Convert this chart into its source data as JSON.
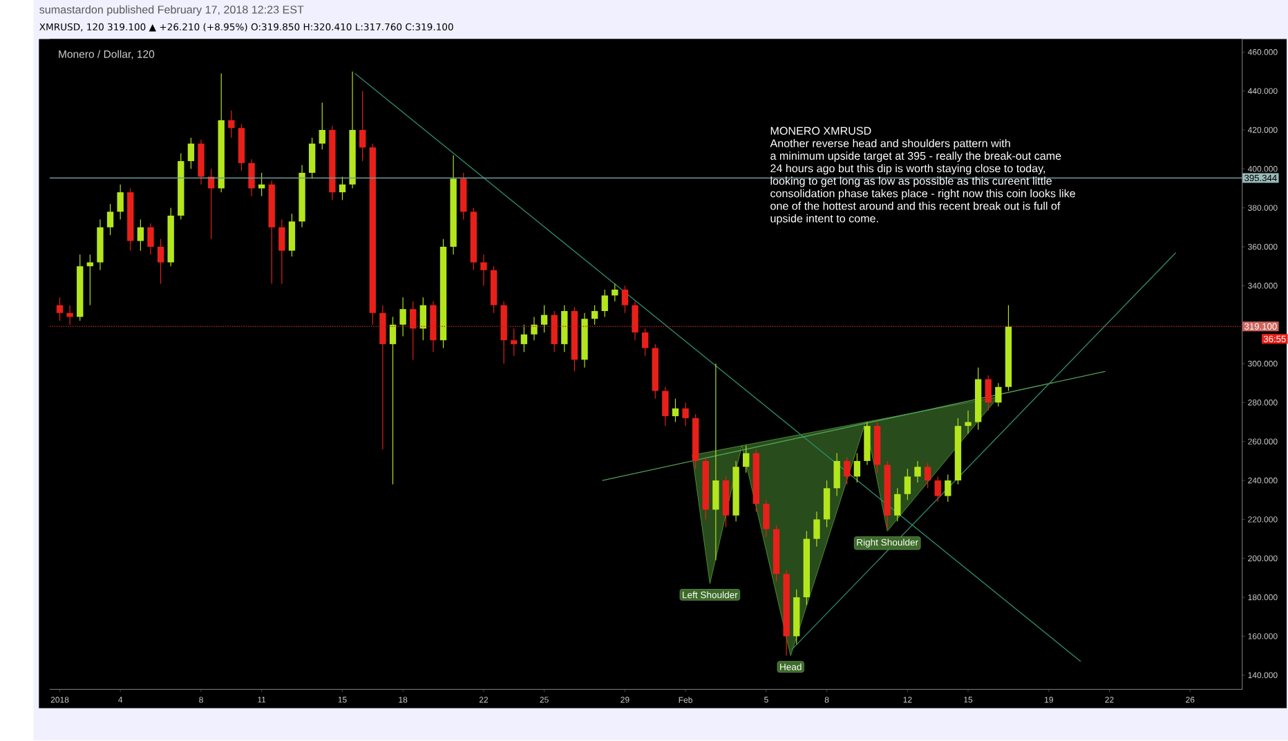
{
  "chart_data": {
    "type": "candlestick",
    "title": "Monero / Dollar, 120",
    "subtitle": "sumastardon published February 17, 2018 12:23 EST",
    "annotations": [
      "XMRUSD, 120  319.100 ▲ +26.210 (+8.95%)  O:319.850  H:320.410  L:317.760  C:319.100",
      "MONERO  XMRUSD",
      "Another reverse head and shoulders pattern with",
      "a minimum upside target at 395 - really the break-out came",
      "24 hours ago but this dip is worth staying close to today,",
      "looking to get long as low as possible as this cureent little",
      "consolidation phase takes place - right now this coin looks like",
      "one of the hottest around and this recent break out is full of",
      "upside intent to come.",
      "36:55",
      "Left Shoulder",
      "Head",
      "Right Shoulder"
    ],
    "x": [
      "2018-01-01T00:00",
      "2018-01-01T12:00",
      "2018-01-02T00:00",
      "2018-01-02T12:00",
      "2018-01-03T00:00",
      "2018-01-03T12:00",
      "2018-01-04T00:00",
      "2018-01-04T12:00",
      "2018-01-05T00:00",
      "2018-01-05T12:00",
      "2018-01-06T00:00",
      "2018-01-06T12:00",
      "2018-01-07T00:00",
      "2018-01-07T12:00",
      "2018-01-08T00:00",
      "2018-01-08T12:00",
      "2018-01-09T00:00",
      "2018-01-09T12:00",
      "2018-01-10T00:00",
      "2018-01-10T12:00",
      "2018-01-11T00:00",
      "2018-01-11T12:00",
      "2018-01-12T00:00",
      "2018-01-12T12:00",
      "2018-01-13T00:00",
      "2018-01-13T12:00",
      "2018-01-14T00:00",
      "2018-01-14T12:00",
      "2018-01-15T00:00",
      "2018-01-15T12:00",
      "2018-01-16T00:00",
      "2018-01-16T12:00",
      "2018-01-17T00:00",
      "2018-01-17T12:00",
      "2018-01-18T00:00",
      "2018-01-18T12:00",
      "2018-01-19T00:00",
      "2018-01-19T12:00",
      "2018-01-20T00:00",
      "2018-01-20T12:00",
      "2018-01-21T00:00",
      "2018-01-21T12:00",
      "2018-01-22T00:00",
      "2018-01-22T12:00",
      "2018-01-23T00:00",
      "2018-01-23T12:00",
      "2018-01-24T00:00",
      "2018-01-24T12:00",
      "2018-01-25T00:00",
      "2018-01-25T12:00",
      "2018-01-26T00:00",
      "2018-01-26T12:00",
      "2018-01-27T00:00",
      "2018-01-27T12:00",
      "2018-01-28T00:00",
      "2018-01-28T12:00",
      "2018-01-29T00:00",
      "2018-01-29T12:00",
      "2018-01-30T00:00",
      "2018-01-30T12:00",
      "2018-01-31T00:00",
      "2018-01-31T12:00",
      "2018-02-01T00:00",
      "2018-02-01T12:00",
      "2018-02-02T00:00",
      "2018-02-02T12:00",
      "2018-02-03T00:00",
      "2018-02-03T12:00",
      "2018-02-04T00:00",
      "2018-02-04T12:00",
      "2018-02-05T00:00",
      "2018-02-05T12:00",
      "2018-02-06T00:00",
      "2018-02-06T12:00",
      "2018-02-07T00:00",
      "2018-02-07T12:00",
      "2018-02-08T00:00",
      "2018-02-08T12:00",
      "2018-02-09T00:00",
      "2018-02-09T12:00",
      "2018-02-10T00:00",
      "2018-02-10T12:00",
      "2018-02-11T00:00",
      "2018-02-11T12:00",
      "2018-02-12T00:00",
      "2018-02-12T12:00",
      "2018-02-13T00:00",
      "2018-02-13T12:00",
      "2018-02-14T00:00",
      "2018-02-14T12:00",
      "2018-02-15T00:00",
      "2018-02-15T12:00",
      "2018-02-16T00:00",
      "2018-02-16T12:00",
      "2018-02-17T00:00"
    ],
    "ohlc": [
      [
        330,
        334,
        322,
        326
      ],
      [
        326,
        330,
        320,
        324
      ],
      [
        324,
        356,
        322,
        350
      ],
      [
        350,
        356,
        330,
        352
      ],
      [
        352,
        374,
        348,
        370
      ],
      [
        370,
        382,
        366,
        378
      ],
      [
        378,
        392,
        374,
        388
      ],
      [
        388,
        390,
        358,
        363
      ],
      [
        363,
        374,
        358,
        370
      ],
      [
        370,
        372,
        356,
        360
      ],
      [
        360,
        364,
        341,
        352
      ],
      [
        352,
        380,
        350,
        376
      ],
      [
        376,
        408,
        374,
        404
      ],
      [
        404,
        416,
        400,
        413
      ],
      [
        413,
        415,
        392,
        396
      ],
      [
        396,
        400,
        364,
        390
      ],
      [
        390,
        449,
        388,
        425
      ],
      [
        425,
        430,
        416,
        421
      ],
      [
        421,
        423,
        399,
        403
      ],
      [
        403,
        405,
        386,
        390
      ],
      [
        390,
        398,
        386,
        392
      ],
      [
        392,
        394,
        341,
        370
      ],
      [
        370,
        374,
        341,
        358
      ],
      [
        358,
        377,
        355,
        373
      ],
      [
        373,
        402,
        370,
        398
      ],
      [
        398,
        416,
        395,
        413
      ],
      [
        413,
        434,
        410,
        420
      ],
      [
        420,
        422,
        384,
        388
      ],
      [
        388,
        396,
        384,
        392
      ],
      [
        392,
        450,
        390,
        420
      ],
      [
        420,
        440,
        404,
        411
      ],
      [
        411,
        413,
        320,
        326
      ],
      [
        326,
        330,
        256,
        310
      ],
      [
        310,
        324,
        238,
        320
      ],
      [
        320,
        334,
        314,
        328
      ],
      [
        328,
        332,
        302,
        318
      ],
      [
        318,
        334,
        312,
        330
      ],
      [
        330,
        332,
        306,
        312
      ],
      [
        312,
        364,
        308,
        360
      ],
      [
        360,
        407,
        356,
        395
      ],
      [
        395,
        398,
        374,
        378
      ],
      [
        378,
        380,
        348,
        352
      ],
      [
        352,
        356,
        340,
        348
      ],
      [
        348,
        350,
        326,
        330
      ],
      [
        330,
        332,
        300,
        312
      ],
      [
        312,
        318,
        304,
        310
      ],
      [
        310,
        320,
        306,
        315
      ],
      [
        315,
        324,
        312,
        320
      ],
      [
        320,
        330,
        316,
        325
      ],
      [
        325,
        327,
        306,
        310
      ],
      [
        310,
        330,
        306,
        327
      ],
      [
        327,
        329,
        296,
        302
      ],
      [
        302,
        326,
        298,
        323
      ],
      [
        323,
        330,
        320,
        327
      ],
      [
        327,
        338,
        324,
        335
      ],
      [
        335,
        341,
        332,
        338
      ],
      [
        338,
        340,
        326,
        330
      ],
      [
        330,
        332,
        312,
        316
      ],
      [
        316,
        318,
        304,
        308
      ],
      [
        308,
        310,
        282,
        286
      ],
      [
        286,
        288,
        268,
        273
      ],
      [
        273,
        282,
        270,
        277
      ],
      [
        277,
        280,
        268,
        272
      ],
      [
        272,
        274,
        246,
        250
      ],
      [
        250,
        252,
        220,
        225
      ],
      [
        225,
        300,
        199,
        240
      ],
      [
        240,
        242,
        216,
        222
      ],
      [
        222,
        250,
        219,
        247
      ],
      [
        247,
        258,
        244,
        254
      ],
      [
        254,
        256,
        224,
        228
      ],
      [
        228,
        230,
        211,
        215
      ],
      [
        215,
        217,
        188,
        192
      ],
      [
        192,
        194,
        150,
        160
      ],
      [
        160,
        184,
        156,
        180
      ],
      [
        180,
        214,
        176,
        210
      ],
      [
        210,
        224,
        206,
        220
      ],
      [
        220,
        240,
        216,
        236
      ],
      [
        236,
        254,
        232,
        250
      ],
      [
        250,
        252,
        238,
        242
      ],
      [
        242,
        254,
        239,
        250
      ],
      [
        250,
        270,
        248,
        268
      ],
      [
        268,
        270,
        244,
        248
      ],
      [
        248,
        250,
        215,
        222
      ],
      [
        222,
        236,
        219,
        233
      ],
      [
        233,
        246,
        230,
        242
      ],
      [
        242,
        250,
        239,
        247
      ],
      [
        247,
        249,
        236,
        240
      ],
      [
        240,
        242,
        229,
        232
      ],
      [
        232,
        243,
        229,
        240
      ],
      [
        240,
        272,
        238,
        268
      ],
      [
        268,
        276,
        264,
        270
      ],
      [
        270,
        298,
        266,
        292
      ],
      [
        292,
        294,
        276,
        280
      ],
      [
        280,
        290,
        278,
        288
      ],
      [
        288,
        330,
        286,
        319
      ]
    ],
    "colors": [
      "#e8201a",
      "#e8201a",
      "#b4e61e",
      "#b4e61e",
      "#b4e61e",
      "#b4e61e",
      "#b4e61e",
      "#e8201a",
      "#b4e61e",
      "#e8201a",
      "#e8201a",
      "#b4e61e",
      "#b4e61e",
      "#b4e61e",
      "#e8201a",
      "#e8201a",
      "#b4e61e",
      "#e8201a",
      "#e8201a",
      "#e8201a",
      "#b4e61e",
      "#e8201a",
      "#e8201a",
      "#b4e61e",
      "#b4e61e",
      "#b4e61e",
      "#b4e61e",
      "#e8201a",
      "#b4e61e",
      "#b4e61e",
      "#e8201a",
      "#e8201a",
      "#e8201a",
      "#b4e61e",
      "#b4e61e",
      "#e8201a",
      "#b4e61e",
      "#e8201a",
      "#b4e61e",
      "#b4e61e",
      "#e8201a",
      "#e8201a",
      "#e8201a",
      "#e8201a",
      "#e8201a",
      "#e8201a",
      "#b4e61e",
      "#b4e61e",
      "#b4e61e",
      "#e8201a",
      "#b4e61e",
      "#e8201a",
      "#b4e61e",
      "#b4e61e",
      "#b4e61e",
      "#b4e61e",
      "#e8201a",
      "#e8201a",
      "#e8201a",
      "#e8201a",
      "#e8201a",
      "#b4e61e",
      "#e8201a",
      "#e8201a",
      "#e8201a",
      "#b4e61e",
      "#e8201a",
      "#b4e61e",
      "#b4e61e",
      "#e8201a",
      "#e8201a",
      "#e8201a",
      "#e8201a",
      "#b4e61e",
      "#b4e61e",
      "#b4e61e",
      "#b4e61e",
      "#b4e61e",
      "#e8201a",
      "#b4e61e",
      "#b4e61e",
      "#e8201a",
      "#e8201a",
      "#b4e61e",
      "#b4e61e",
      "#b4e61e",
      "#e8201a",
      "#e8201a",
      "#b4e61e",
      "#b4e61e",
      "#b4e61e",
      "#b4e61e",
      "#e8201a",
      "#b4e61e",
      "#b4e61e"
    ],
    "series": [
      {
        "type": "area",
        "color": "#5aa83c",
        "x": [
          "2018-02-01T08:00",
          "2018-02-02T05:00",
          "2018-02-03T19:00",
          "2018-02-06T05:00",
          "2018-02-09T22:00",
          "2018-02-11T00:00",
          "2018-02-16T12:00",
          "2018-02-01T08:00"
        ],
        "values": [
          253,
          187,
          258,
          150,
          270,
          214,
          283,
          253
        ]
      },
      {
        "type": "line",
        "color": "#2e8b6e",
        "x": [
          "2018-01-15T15:00",
          "2018-02-20T14:00"
        ],
        "values": [
          449,
          147
        ]
      },
      {
        "type": "line",
        "color": "#4f9f58",
        "x": [
          "2018-01-27T21:00",
          "2018-02-21T19:00"
        ],
        "values": [
          240,
          296
        ]
      },
      {
        "type": "line",
        "color": "#2e8b6e",
        "x": [
          "2018-02-06T06:00",
          "2018-02-25T07:00"
        ],
        "values": [
          153,
          357
        ]
      }
    ],
    "ref_lines": [
      {
        "axis": "y",
        "value": 395.344,
        "label": "395.344",
        "color": "#6f9c9c",
        "line_style": "solid"
      },
      {
        "axis": "y",
        "value": 319.1,
        "label": "319.100",
        "color": "#b8241c",
        "line_style": "dotted"
      }
    ],
    "xlim": [
      "2017-12-31T12:00",
      "2018-02-28T14:00"
    ],
    "xticks": [
      {
        "value": "2018-01-01",
        "label": "2018"
      },
      {
        "value": "2018-01-04",
        "label": "4"
      },
      {
        "value": "2018-01-08",
        "label": "8"
      },
      {
        "value": "2018-01-11",
        "label": "11"
      },
      {
        "value": "2018-01-15",
        "label": "15"
      },
      {
        "value": "2018-01-18",
        "label": "18"
      },
      {
        "value": "2018-01-22",
        "label": "22"
      },
      {
        "value": "2018-01-25",
        "label": "25"
      },
      {
        "value": "2018-01-29",
        "label": "29"
      },
      {
        "value": "2018-02-01",
        "label": "Feb"
      },
      {
        "value": "2018-02-05",
        "label": "5"
      },
      {
        "value": "2018-02-08",
        "label": "8"
      },
      {
        "value": "2018-02-12",
        "label": "12"
      },
      {
        "value": "2018-02-15",
        "label": "15"
      },
      {
        "value": "2018-02-19",
        "label": "19"
      },
      {
        "value": "2018-02-22",
        "label": "22"
      },
      {
        "value": "2018-02-26",
        "label": "26"
      }
    ],
    "ylim": [
      132.7,
      466.7
    ],
    "yticks": [
      {
        "value": 140,
        "label": "140.000"
      },
      {
        "value": 160,
        "label": "160.000"
      },
      {
        "value": 180,
        "label": "180.000"
      },
      {
        "value": 200,
        "label": "200.000"
      },
      {
        "value": 220,
        "label": "220.000"
      },
      {
        "value": 240,
        "label": "240.000"
      },
      {
        "value": 260,
        "label": "260.000"
      },
      {
        "value": 280,
        "label": "280.000"
      },
      {
        "value": 300,
        "label": "300.000"
      },
      {
        "value": 320,
        "label": null
      },
      {
        "value": 340,
        "label": "340.000"
      },
      {
        "value": 360,
        "label": "360.000"
      },
      {
        "value": 380,
        "label": "380.000"
      },
      {
        "value": 400,
        "label": "400.000"
      },
      {
        "value": 420,
        "label": "420.000"
      },
      {
        "value": 440,
        "label": "440.000"
      },
      {
        "value": 460,
        "label": "460.000"
      }
    ]
  }
}
